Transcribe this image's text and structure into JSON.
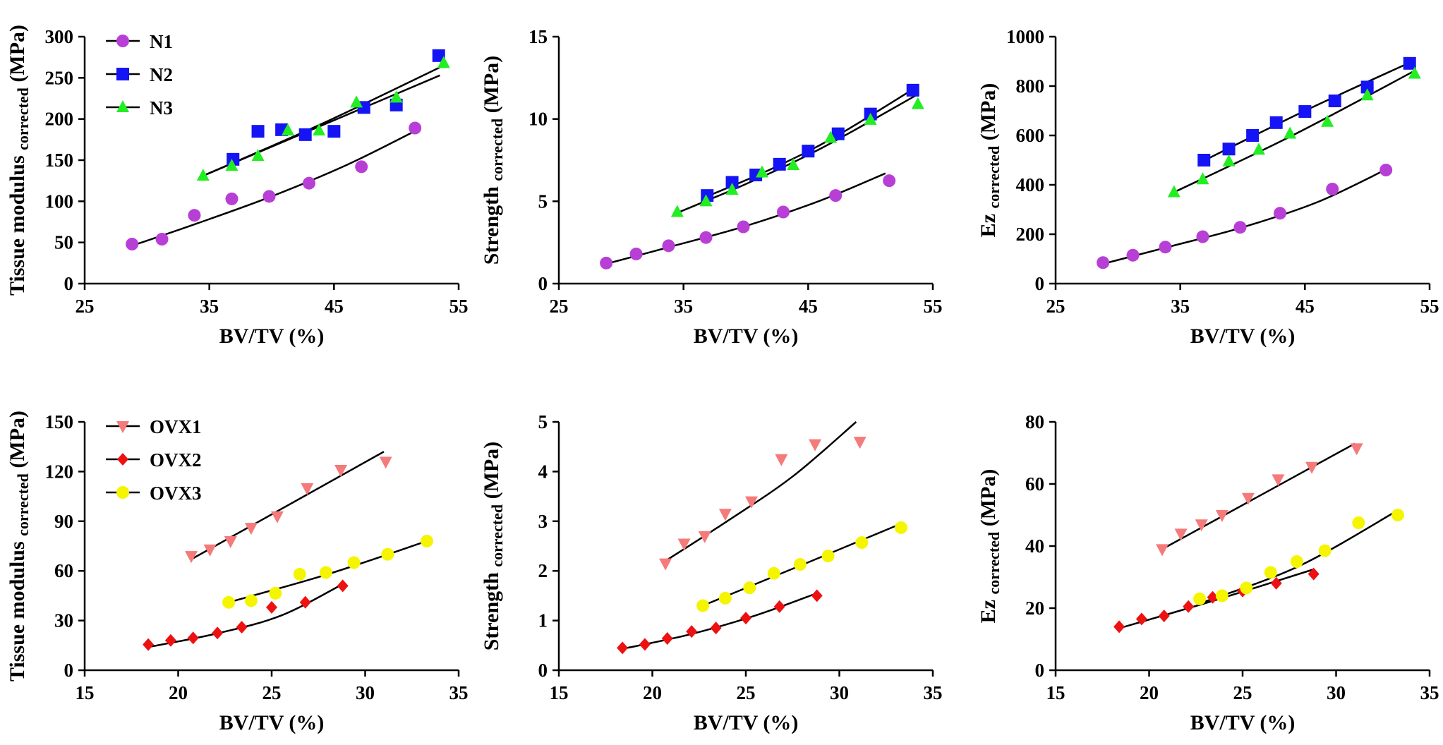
{
  "figure": {
    "colors": {
      "N1": "#b83fd6",
      "N2": "#1414f5",
      "N3": "#22ee22",
      "OVX1": "#f57a7a",
      "OVX2": "#ee1111",
      "OVX3": "#f5f500",
      "fit": "#000000"
    }
  },
  "chart_data": [
    {
      "id": "p1",
      "type": "scatter",
      "ylabel_main": "Tissue modulus",
      "ylabel_sub": "corrected",
      "ylabel_unit": "(MPa)",
      "xlabel": "BV/TV (%)",
      "xlim": [
        25,
        55
      ],
      "ylim": [
        0,
        300
      ],
      "xticks": [
        25,
        35,
        45,
        55
      ],
      "yticks": [
        0,
        50,
        100,
        150,
        200,
        250,
        300
      ],
      "legend": true,
      "series": [
        {
          "name": "N1",
          "marker": "circle",
          "color": "#b83fd6",
          "x": [
            28.8,
            31.2,
            33.8,
            36.8,
            39.8,
            43.0,
            47.2,
            51.5
          ],
          "y": [
            48,
            54,
            83,
            103,
            106,
            122,
            142,
            189
          ],
          "fit": [
            [
              28.8,
              46
            ],
            [
              34,
              73
            ],
            [
              40,
              106
            ],
            [
              46,
              144
            ],
            [
              51.2,
              183
            ]
          ]
        },
        {
          "name": "N2",
          "marker": "square",
          "color": "#1414f5",
          "x": [
            36.9,
            38.9,
            40.8,
            42.7,
            45.0,
            47.4,
            50.0,
            53.4
          ],
          "y": [
            151,
            185,
            187,
            181,
            185,
            214,
            217,
            277
          ],
          "fit": [
            [
              34.5,
              131
            ],
            [
              53.5,
              253
            ]
          ]
        },
        {
          "name": "N3",
          "marker": "triangle",
          "color": "#22ee22",
          "x": [
            34.5,
            36.8,
            38.9,
            41.3,
            43.8,
            46.8,
            50.0,
            53.8
          ],
          "y": [
            131,
            143,
            155,
            186,
            186,
            220,
            226,
            268
          ],
          "fit": [
            [
              34.5,
              131
            ],
            [
              44,
              194
            ],
            [
              53.8,
              265
            ]
          ]
        }
      ]
    },
    {
      "id": "p2",
      "type": "scatter",
      "ylabel_main": "Strength",
      "ylabel_sub": "corrected",
      "ylabel_unit": "(MPa)",
      "xlabel": "BV/TV (%)",
      "xlim": [
        25,
        55
      ],
      "ylim": [
        0,
        15
      ],
      "xticks": [
        25,
        35,
        45,
        55
      ],
      "yticks": [
        0,
        5,
        10,
        15
      ],
      "legend": false,
      "series": [
        {
          "name": "N1",
          "marker": "circle",
          "color": "#b83fd6",
          "x": [
            28.8,
            31.2,
            33.8,
            36.8,
            39.8,
            43.0,
            47.2,
            51.5
          ],
          "y": [
            1.25,
            1.8,
            2.3,
            2.8,
            3.45,
            4.35,
            5.35,
            6.25
          ],
          "fit": [
            [
              28.8,
              1.2
            ],
            [
              34,
              2.25
            ],
            [
              40,
              3.5
            ],
            [
              46,
              5.05
            ],
            [
              51.2,
              6.7
            ]
          ]
        },
        {
          "name": "N2",
          "marker": "square",
          "color": "#1414f5",
          "x": [
            36.9,
            38.9,
            40.8,
            42.7,
            45.0,
            47.4,
            50.0,
            53.4
          ],
          "y": [
            5.35,
            6.15,
            6.6,
            7.25,
            8.05,
            9.1,
            10.3,
            11.75
          ],
          "fit": [
            [
              36.9,
              5.3
            ],
            [
              42,
              6.95
            ],
            [
              47,
              8.85
            ],
            [
              53.4,
              11.8
            ]
          ]
        },
        {
          "name": "N3",
          "marker": "triangle",
          "color": "#22ee22",
          "x": [
            34.5,
            36.8,
            38.9,
            41.3,
            43.8,
            46.8,
            50.0,
            53.8
          ],
          "y": [
            4.35,
            5.0,
            5.7,
            6.75,
            7.2,
            8.85,
            9.95,
            10.9
          ],
          "fit": [
            [
              34.5,
              4.3
            ],
            [
              40,
              6.05
            ],
            [
              46,
              8.2
            ],
            [
              53.8,
              11.5
            ]
          ]
        }
      ]
    },
    {
      "id": "p3",
      "type": "scatter",
      "ylabel_main": "Ez",
      "ylabel_sub": "corrected",
      "ylabel_unit": "(MPa)",
      "xlabel": "BV/TV (%)",
      "xlim": [
        25,
        55
      ],
      "ylim": [
        0,
        1000
      ],
      "xticks": [
        25,
        35,
        45,
        55
      ],
      "yticks": [
        0,
        200,
        400,
        600,
        800,
        1000
      ],
      "legend": false,
      "series": [
        {
          "name": "N1",
          "marker": "circle",
          "color": "#b83fd6",
          "x": [
            28.8,
            31.2,
            33.8,
            36.8,
            39.8,
            43.0,
            47.2,
            51.5
          ],
          "y": [
            85,
            115,
            148,
            190,
            228,
            285,
            383,
            460
          ],
          "fit": [
            [
              28.8,
              80
            ],
            [
              34,
              148
            ],
            [
              40,
              228
            ],
            [
              46,
              330
            ],
            [
              51.5,
              462
            ]
          ]
        },
        {
          "name": "N2",
          "marker": "square",
          "color": "#1414f5",
          "x": [
            36.9,
            38.9,
            40.8,
            42.7,
            45.0,
            47.4,
            50.0,
            53.4
          ],
          "y": [
            500,
            545,
            600,
            652,
            697,
            740,
            796,
            892
          ],
          "fit": [
            [
              36.9,
              498
            ],
            [
              45,
              700
            ],
            [
              53.4,
              895
            ]
          ]
        },
        {
          "name": "N3",
          "marker": "triangle",
          "color": "#22ee22",
          "x": [
            34.5,
            36.8,
            38.9,
            41.3,
            43.8,
            46.8,
            50.0,
            53.8
          ],
          "y": [
            370,
            422,
            495,
            542,
            607,
            655,
            762,
            850
          ],
          "fit": [
            [
              34.5,
              370
            ],
            [
              44,
              600
            ],
            [
              53.8,
              862
            ]
          ]
        }
      ]
    },
    {
      "id": "p4",
      "type": "scatter",
      "ylabel_main": "Tissue modulus",
      "ylabel_sub": "corrected",
      "ylabel_unit": "(MPa)",
      "xlabel": "BV/TV (%)",
      "xlim": [
        15,
        35
      ],
      "ylim": [
        0,
        150
      ],
      "xticks": [
        15,
        20,
        25,
        30,
        35
      ],
      "yticks": [
        0,
        30,
        60,
        90,
        120,
        150
      ],
      "legend": true,
      "series": [
        {
          "name": "OVX1",
          "marker": "triangle-down",
          "color": "#f57a7a",
          "x": [
            20.7,
            21.7,
            22.8,
            23.9,
            25.3,
            26.9,
            28.7,
            31.1
          ],
          "y": [
            69,
            73,
            78,
            86,
            93,
            110,
            121,
            126
          ],
          "fit": [
            [
              20.7,
              67
            ],
            [
              31.0,
              132
            ]
          ]
        },
        {
          "name": "OVX2",
          "marker": "diamond",
          "color": "#ee1111",
          "x": [
            18.4,
            19.6,
            20.8,
            22.1,
            23.4,
            25.0,
            26.8,
            28.8
          ],
          "y": [
            15.5,
            18,
            19.5,
            22.5,
            26,
            38,
            41,
            51
          ],
          "fit": [
            [
              18.4,
              14
            ],
            [
              22,
              22
            ],
            [
              25.5,
              33
            ],
            [
              28.8,
              52
            ]
          ]
        },
        {
          "name": "OVX3",
          "marker": "circle",
          "color": "#f5f500",
          "x": [
            22.7,
            23.9,
            25.2,
            26.5,
            27.9,
            29.4,
            31.2,
            33.3
          ],
          "y": [
            41,
            42,
            46.5,
            58,
            59,
            65,
            70,
            78
          ],
          "fit": [
            [
              22.7,
              41
            ],
            [
              28,
              58
            ],
            [
              33.3,
              78
            ]
          ]
        }
      ]
    },
    {
      "id": "p5",
      "type": "scatter",
      "ylabel_main": "Strength",
      "ylabel_sub": "corrected",
      "ylabel_unit": "(MPa)",
      "xlabel": "BV/TV (%)",
      "xlim": [
        15,
        35
      ],
      "ylim": [
        0,
        5
      ],
      "xticks": [
        15,
        20,
        25,
        30,
        35
      ],
      "yticks": [
        0,
        1,
        2,
        3,
        4,
        5
      ],
      "legend": false,
      "series": [
        {
          "name": "OVX1",
          "marker": "triangle-down",
          "color": "#f57a7a",
          "x": [
            20.7,
            21.7,
            22.8,
            23.9,
            25.3,
            26.9,
            28.7,
            31.1
          ],
          "y": [
            2.15,
            2.55,
            2.7,
            3.15,
            3.4,
            4.25,
            4.55,
            4.6
          ],
          "fit": [
            [
              20.7,
              2.2
            ],
            [
              24,
              3.0
            ],
            [
              27.5,
              3.9
            ],
            [
              30.9,
              5.0
            ]
          ]
        },
        {
          "name": "OVX2",
          "marker": "diamond",
          "color": "#ee1111",
          "x": [
            18.4,
            19.6,
            20.8,
            22.1,
            23.4,
            25.0,
            26.8,
            28.8
          ],
          "y": [
            0.45,
            0.52,
            0.64,
            0.78,
            0.85,
            1.05,
            1.28,
            1.5
          ],
          "fit": [
            [
              18.4,
              0.43
            ],
            [
              22,
              0.72
            ],
            [
              25.5,
              1.1
            ],
            [
              28.8,
              1.55
            ]
          ]
        },
        {
          "name": "OVX3",
          "marker": "circle",
          "color": "#f5f500",
          "x": [
            22.7,
            23.9,
            25.2,
            26.5,
            27.9,
            29.4,
            31.2,
            33.3
          ],
          "y": [
            1.3,
            1.45,
            1.66,
            1.95,
            2.13,
            2.3,
            2.57,
            2.87
          ],
          "fit": [
            [
              22.7,
              1.3
            ],
            [
              28,
              2.12
            ],
            [
              33.3,
              2.95
            ]
          ]
        }
      ]
    },
    {
      "id": "p6",
      "type": "scatter",
      "ylabel_main": "Ez",
      "ylabel_sub": "corrected",
      "ylabel_unit": "(MPa)",
      "xlabel": "BV/TV (%)",
      "xlim": [
        15,
        35
      ],
      "ylim": [
        0,
        80
      ],
      "xticks": [
        15,
        20,
        25,
        30,
        35
      ],
      "yticks": [
        0,
        20,
        40,
        60,
        80
      ],
      "legend": false,
      "series": [
        {
          "name": "OVX1",
          "marker": "triangle-down",
          "color": "#f57a7a",
          "x": [
            20.7,
            21.7,
            22.8,
            23.9,
            25.3,
            26.9,
            28.7,
            31.1
          ],
          "y": [
            39,
            44,
            47,
            50,
            55.5,
            61.5,
            65.5,
            71.5
          ],
          "fit": [
            [
              20.7,
              39
            ],
            [
              31.0,
              73
            ]
          ]
        },
        {
          "name": "OVX2",
          "marker": "diamond",
          "color": "#ee1111",
          "x": [
            18.4,
            19.6,
            20.8,
            22.1,
            23.4,
            25.0,
            26.8,
            28.8
          ],
          "y": [
            14,
            16.5,
            17.5,
            20.5,
            23.5,
            25.5,
            28,
            31
          ],
          "fit": [
            [
              18.4,
              13.5
            ],
            [
              23.5,
              22.5
            ],
            [
              28.8,
              32.5
            ]
          ]
        },
        {
          "name": "OVX3",
          "marker": "circle",
          "color": "#f5f500",
          "x": [
            22.7,
            23.9,
            25.2,
            26.5,
            27.9,
            29.4,
            31.2,
            33.3
          ],
          "y": [
            23,
            24,
            26.5,
            31.5,
            35,
            38.5,
            47.5,
            50
          ],
          "fit": [
            [
              22.7,
              21.5
            ],
            [
              28,
              33.5
            ],
            [
              33.3,
              51.5
            ]
          ]
        }
      ]
    }
  ]
}
